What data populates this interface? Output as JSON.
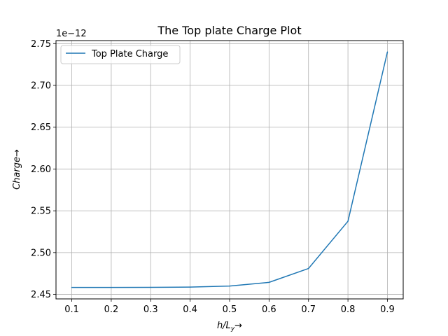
{
  "chart_data": {
    "type": "line",
    "title": "The Top plate Charge Plot",
    "xlabel_base": "h/L",
    "xlabel_sub": "y",
    "ylabel": "Charge",
    "arrow": "→",
    "offset_text": "1e−12",
    "x": [
      0.1,
      0.2,
      0.3,
      0.4,
      0.5,
      0.6,
      0.7,
      0.8,
      0.9
    ],
    "series": [
      {
        "name": "Top Plate Charge",
        "color": "#1f77b4",
        "values": [
          2.4583,
          2.4583,
          2.4584,
          2.4587,
          2.46,
          2.4644,
          2.481,
          2.5375,
          2.74
        ]
      }
    ],
    "xlim": [
      0.06,
      0.94
    ],
    "ylim": [
      2.4446,
      2.7536
    ],
    "xticks": [
      0.1,
      0.2,
      0.3,
      0.4,
      0.5,
      0.6,
      0.7,
      0.8,
      0.9
    ],
    "xtick_labels": [
      "0.1",
      "0.2",
      "0.3",
      "0.4",
      "0.5",
      "0.6",
      "0.7",
      "0.8",
      "0.9"
    ],
    "yticks": [
      2.45,
      2.5,
      2.55,
      2.6,
      2.65,
      2.7,
      2.75
    ],
    "ytick_labels": [
      "2.45",
      "2.50",
      "2.55",
      "2.60",
      "2.65",
      "2.70",
      "2.75"
    ],
    "grid": true,
    "legend_position": "upper-left"
  }
}
